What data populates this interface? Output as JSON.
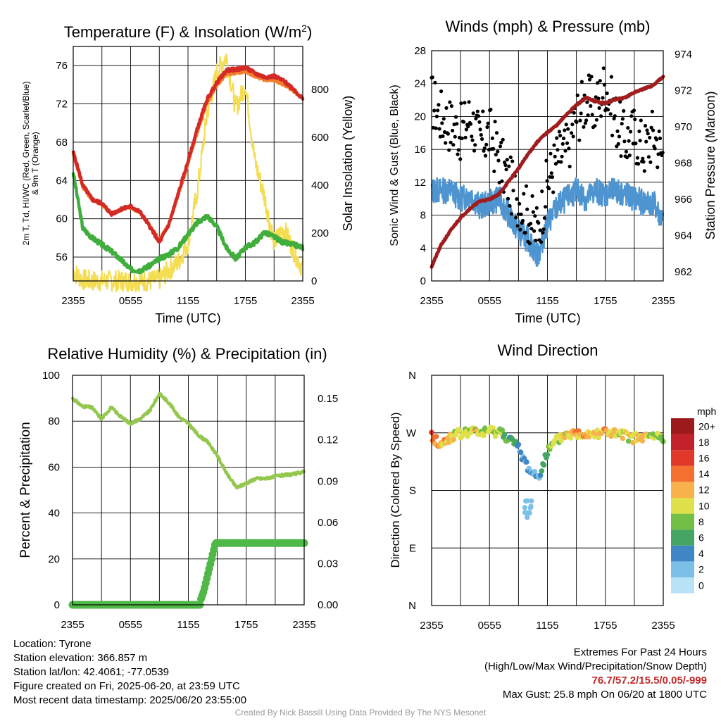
{
  "x_ticks": [
    "2355",
    "0555",
    "1155",
    "1755",
    "2355"
  ],
  "panels": {
    "temp": {
      "title": "Temperature (F) & Insolation (W/m²)",
      "xlabel": "Time (UTC)",
      "ylabel_left_1": "2m T, Td, HI/WC (Red, Green, Scarlet/Blue)",
      "ylabel_left_2": "& 9m T (Orange)",
      "ylabel_right": "Solar Insolation (Yellow)",
      "left_ticks": [
        "56",
        "60",
        "64",
        "68",
        "72",
        "76"
      ],
      "right_ticks": [
        "0",
        "200",
        "400",
        "600",
        "800"
      ]
    },
    "wind": {
      "title": "Winds (mph) & Pressure (mb)",
      "xlabel": "Time (UTC)",
      "ylabel_left": "Sonic Wind & Gust (Blue, Black)",
      "ylabel_right": "Station Pressure (Maroon)",
      "left_ticks": [
        "0",
        "4",
        "8",
        "12",
        "16",
        "20",
        "24",
        "28"
      ],
      "right_ticks": [
        "962",
        "964",
        "966",
        "968",
        "970",
        "972",
        "974"
      ]
    },
    "rh": {
      "title": "Relative Humidity (%) & Precipitation (in)",
      "ylabel_left": "Percent & Precipitation",
      "left_ticks": [
        "0",
        "20",
        "40",
        "60",
        "80",
        "100"
      ],
      "right_ticks": [
        "0.00",
        "0.03",
        "0.06",
        "0.09",
        "0.12",
        "0.15"
      ]
    },
    "dir": {
      "title": "Wind Direction",
      "ylabel_left": "Direction (Colored By Speed)",
      "left_ticks": [
        "N",
        "E",
        "S",
        "W",
        "N"
      ],
      "colorbar_title": "mph",
      "colorbar_labels": [
        "0",
        "2",
        "4",
        "6",
        "8",
        "10",
        "12",
        "14",
        "16",
        "18",
        "20+"
      ],
      "colorbar_colors": [
        "#b8e2f5",
        "#7cc0e8",
        "#3f86c4",
        "#45a563",
        "#73bf45",
        "#dfe04a",
        "#f8b14b",
        "#f3702f",
        "#e0392a",
        "#c2222a",
        "#9c1a1c"
      ]
    }
  },
  "colors": {
    "temp_2m": "#d42a26",
    "temp_9m": "#f37f2c",
    "dewpoint": "#3fae3c",
    "solar": "#f5dd52",
    "wind": "#4d94d0",
    "gust": "#000000",
    "pressure": "#a01d1f",
    "rh": "#93c74e",
    "precip": "#4fb848"
  },
  "chart_data": [
    {
      "type": "line",
      "title": "Temperature (F) & Insolation (W/m²)",
      "xlabel": "Time (UTC)",
      "x": [
        0,
        1,
        2,
        3,
        4,
        5,
        6,
        7,
        8,
        9,
        10,
        11,
        12,
        13,
        14,
        15,
        16,
        17,
        18,
        19,
        20,
        21,
        22,
        23,
        24
      ],
      "ylim_left": [
        53.5,
        78
      ],
      "ylim_right": [
        0,
        980
      ],
      "series": [
        {
          "name": "2m T",
          "axis": "left",
          "values": [
            67,
            63.5,
            62,
            61.6,
            60.5,
            61,
            61.3,
            60.7,
            59.2,
            57.5,
            59.4,
            62.7,
            66,
            69.5,
            72.5,
            74.2,
            75.5,
            75.6,
            75.8,
            75.2,
            74.8,
            74.9,
            74.4,
            73.6,
            72.5
          ]
        },
        {
          "name": "9m T",
          "axis": "left",
          "values": [
            66.7,
            63.3,
            61.9,
            61.5,
            60.5,
            61,
            61.2,
            60.6,
            59.3,
            57.8,
            59.4,
            62.5,
            65.7,
            69.1,
            72.1,
            73.9,
            75.1,
            75.2,
            75.4,
            74.9,
            74.5,
            74.5,
            74,
            73.4,
            72.5
          ]
        },
        {
          "name": "Td",
          "axis": "left",
          "values": [
            64.8,
            59,
            58,
            57.3,
            56.6,
            55.7,
            54.7,
            54.6,
            55.1,
            55.8,
            56.3,
            57,
            58.4,
            59.6,
            60.3,
            59.2,
            57,
            55.8,
            57,
            57.5,
            58.6,
            58.1,
            57.5,
            57.3,
            57
          ]
        },
        {
          "name": "Solar",
          "axis": "right",
          "values": [
            40,
            5,
            0,
            0,
            0,
            0,
            0,
            0,
            0,
            5,
            45,
            80,
            160,
            380,
            700,
            870,
            940,
            720,
            820,
            500,
            350,
            160,
            220,
            130,
            50
          ]
        }
      ]
    },
    {
      "type": "line",
      "title": "Winds (mph) & Pressure (mb)",
      "xlabel": "Time (UTC)",
      "x": [
        0,
        1,
        2,
        3,
        4,
        5,
        6,
        7,
        8,
        9,
        10,
        11,
        12,
        13,
        14,
        15,
        16,
        17,
        18,
        19,
        20,
        21,
        22,
        23,
        24
      ],
      "ylim_left": [
        0,
        28
      ],
      "ylim_right": [
        961.5,
        974.2
      ],
      "series": [
        {
          "name": "Wind",
          "axis": "left",
          "values": [
            11,
            11,
            11,
            10,
            10.5,
            9,
            9.5,
            10,
            8,
            6,
            5,
            3,
            7,
            9,
            10,
            11,
            10,
            11,
            10.5,
            11,
            10.5,
            10,
            9.5,
            9.5,
            7
          ]
        },
        {
          "name": "Gust",
          "axis": "left",
          "values": [
            22,
            20,
            19,
            18,
            20,
            17,
            18,
            15,
            12,
            10,
            8,
            6,
            12,
            15,
            16,
            20,
            22,
            21,
            24,
            20,
            17,
            18,
            16,
            18,
            15
          ]
        },
        {
          "name": "Pressure",
          "axis": "right",
          "values": [
            962.3,
            963.5,
            964.3,
            965,
            965.5,
            965.9,
            966,
            966.3,
            967,
            967.7,
            968.5,
            969.2,
            969.7,
            970.1,
            970.7,
            971.2,
            971.6,
            971.4,
            971.3,
            971.5,
            971.6,
            971.9,
            972.1,
            972.3,
            972.8
          ]
        }
      ]
    },
    {
      "type": "line",
      "title": "Relative Humidity (%) & Precipitation (in)",
      "x": [
        0,
        1,
        2,
        3,
        4,
        5,
        6,
        7,
        8,
        9,
        10,
        11,
        12,
        13,
        14,
        15,
        16,
        17,
        18,
        19,
        20,
        21,
        22,
        23,
        24
      ],
      "ylim_left": [
        0,
        100
      ],
      "ylim_right": [
        0,
        0.167
      ],
      "series": [
        {
          "name": "RH",
          "axis": "left",
          "values": [
            90,
            86.5,
            86,
            81,
            86,
            82,
            79,
            81,
            84.5,
            92,
            88,
            82,
            79,
            74,
            71,
            65,
            57,
            51,
            53,
            55,
            55,
            56,
            56.5,
            57,
            58
          ]
        },
        {
          "name": "Precipitation",
          "axis": "right",
          "values": [
            0,
            0,
            0,
            0,
            0,
            0,
            0,
            0,
            0,
            0,
            0,
            0,
            0,
            0.015,
            0.045,
            0.045,
            0.045,
            0.045,
            0.045,
            0.045,
            0.045,
            0.045,
            0.045,
            0.045,
            0.045
          ]
        }
      ]
    },
    {
      "type": "scatter",
      "title": "Wind Direction",
      "x": [
        0,
        1,
        2,
        3,
        4,
        5,
        6,
        7,
        8,
        9,
        10,
        11,
        12,
        13,
        14,
        15,
        16,
        17,
        18,
        19,
        20,
        21,
        22,
        23,
        24
      ],
      "ylim": [
        0,
        360
      ],
      "y_tick_labels": [
        "N",
        "E",
        "S",
        "W",
        "N"
      ],
      "series": [
        {
          "name": "Direction",
          "values": [
            265,
            250,
            265,
            268,
            272,
            270,
            272,
            273,
            262,
            245,
            215,
            200,
            240,
            258,
            268,
            268,
            270,
            270,
            272,
            268,
            265,
            262,
            262,
            265,
            262
          ]
        },
        {
          "name": "Speed",
          "values": [
            14,
            12,
            11,
            10,
            10,
            9,
            10,
            9,
            7,
            4,
            3,
            3,
            6,
            9,
            10,
            12,
            12,
            11,
            12,
            11,
            10,
            11,
            10,
            9,
            7
          ]
        }
      ]
    }
  ],
  "info": {
    "location": "Location: Tyrone",
    "elevation": "Station elevation: 366.857 m",
    "latlon": "Station lat/lon: 42.4061; -77.0539",
    "created": "Figure created on Fri, 2025-06-20, at 23:59 UTC",
    "recent": "Most recent data timestamp: 2025/06/20 23:55:00"
  },
  "extremes": {
    "title": "Extremes For Past 24 Hours",
    "subtitle": "(High/Low/Max Wind/Precipitation/Snow Depth)",
    "values": "76.7/57.2/15.5/0.05/-999",
    "max_gust": "Max Gust: 25.8 mph On 06/20 at 1800 UTC"
  },
  "credit": "Created By Nick Bassill Using Data Provided By The NYS Mesonet"
}
